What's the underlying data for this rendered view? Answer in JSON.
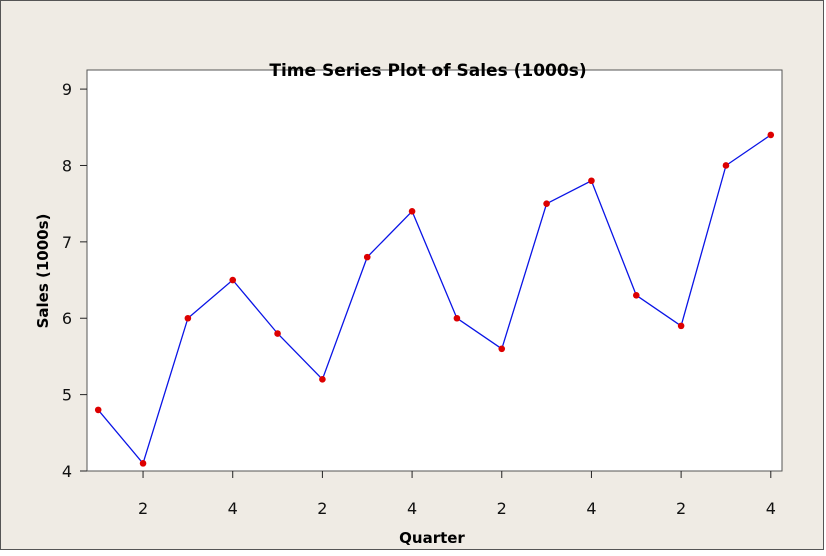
{
  "chart_data": {
    "type": "line",
    "title": "Time Series Plot of Sales (1000s)",
    "xlabel": "Quarter",
    "ylabel": "Sales (1000s)",
    "x": [
      1,
      2,
      3,
      4,
      5,
      6,
      7,
      8,
      9,
      10,
      11,
      12,
      13,
      14,
      15,
      16
    ],
    "x_tick_positions": [
      2,
      4,
      6,
      8,
      10,
      12,
      14,
      16
    ],
    "x_tick_labels": [
      "2",
      "4",
      "2",
      "4",
      "2",
      "4",
      "2",
      "4"
    ],
    "y_ticks": [
      4,
      5,
      6,
      7,
      8,
      9
    ],
    "ylim": [
      4,
      9.25
    ],
    "xlim": [
      0.75,
      16.25
    ],
    "series": [
      {
        "values": [
          4.8,
          4.1,
          6.0,
          6.5,
          5.8,
          5.2,
          6.8,
          7.4,
          6.0,
          5.6,
          7.5,
          7.8,
          6.3,
          5.9,
          8.0,
          8.4
        ],
        "line_color": "#0a14e6",
        "marker_color": "#dd0000"
      }
    ],
    "grid": false,
    "legend": "none"
  }
}
